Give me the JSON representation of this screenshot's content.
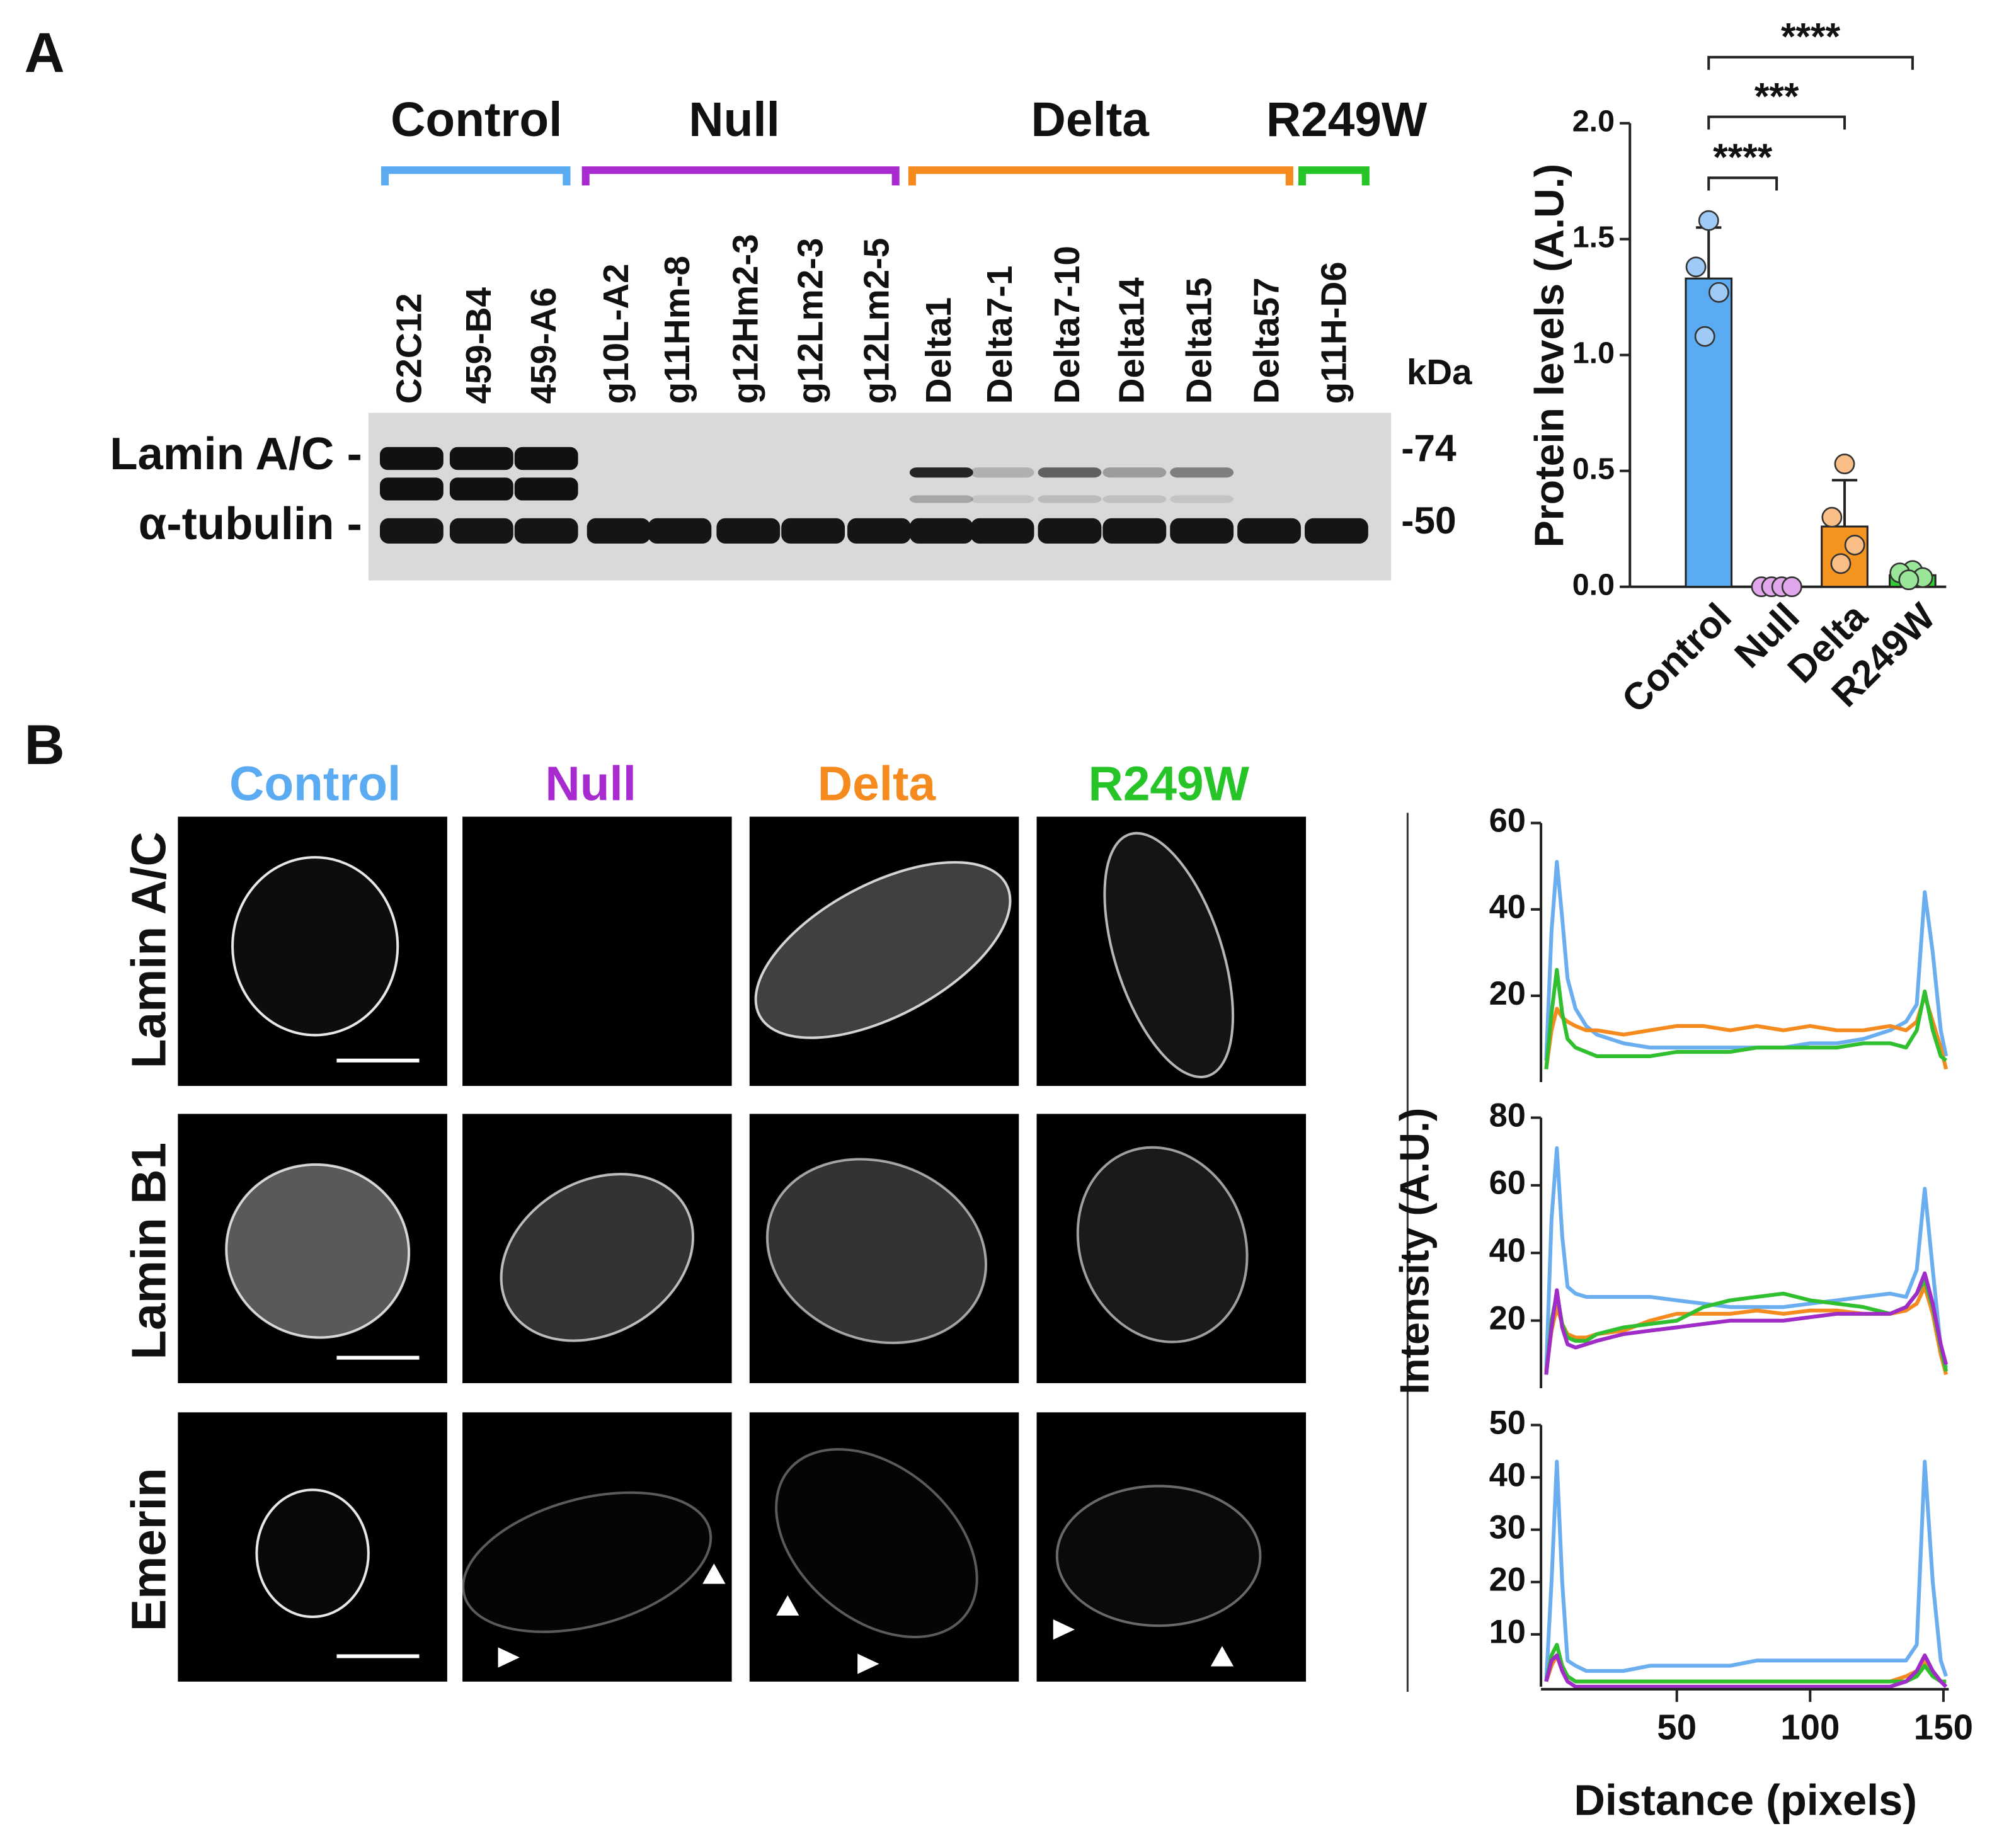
{
  "panel_a": {
    "label": "A",
    "groups": [
      {
        "name": "Control",
        "color": "#5aabf2"
      },
      {
        "name": "Null",
        "color": "#a82bd0"
      },
      {
        "name": "Delta",
        "color": "#f58a1f"
      },
      {
        "name": "R249W",
        "color": "#27c427"
      }
    ],
    "lanes": [
      "C2C12",
      "459-B4",
      "459-A6",
      "g10L-A2",
      "g11Hm-8",
      "g12Hm2-3",
      "g12Lm2-3",
      "g12Lm2-5",
      "Delta1",
      "Delta7-1",
      "Delta7-10",
      "Delta14",
      "Delta15",
      "Delta57",
      "g11H-D6"
    ],
    "unit": "kDa",
    "proteins": [
      "Lamin A/C -",
      "α-tubulin -"
    ],
    "markers": [
      "-74",
      "-50"
    ]
  },
  "panel_b": {
    "label": "B",
    "columns": [
      {
        "name": "Control",
        "color": "#5aabf2"
      },
      {
        "name": "Null",
        "color": "#a82bd0"
      },
      {
        "name": "Delta",
        "color": "#f58a1f"
      },
      {
        "name": "R249W",
        "color": "#27c427"
      }
    ],
    "rows": [
      "Lamin A/C",
      "Lamin B1",
      "Emerin"
    ]
  },
  "chart_data": [
    {
      "type": "bar",
      "ylabel": "Protein levels (A.U.)",
      "categories": [
        "Control",
        "Null",
        "Delta",
        "R249W"
      ],
      "values": [
        1.33,
        0.0,
        0.26,
        0.05
      ],
      "errors": [
        0.22,
        0.0,
        0.2,
        0.02
      ],
      "points": [
        [
          1.58,
          1.38,
          1.27,
          1.08
        ],
        [
          0,
          0,
          0,
          0
        ],
        [
          0.53,
          0.3,
          0.18,
          0.1
        ],
        [
          0.07,
          0.06,
          0.04,
          0.03
        ]
      ],
      "colors": [
        "#5aabf2",
        "#cc66dd",
        "#f5941f",
        "#33cc33"
      ],
      "point_colors": [
        "#9fcaf5",
        "#e2a6ec",
        "#f9bf86",
        "#99e699"
      ],
      "ylim": [
        0,
        2
      ],
      "yticks": [
        {
          "value": 0,
          "label": "0.0"
        },
        {
          "value": 0.5,
          "label": "0.5"
        },
        {
          "value": 1,
          "label": "1.0"
        },
        {
          "value": 1.5,
          "label": "1.5"
        },
        {
          "value": 2,
          "label": "2.0"
        }
      ],
      "significance": [
        {
          "label": "****",
          "between": [
            "Control",
            "Null"
          ]
        },
        {
          "label": "***",
          "between": [
            "Control",
            "Delta"
          ]
        },
        {
          "label": "****",
          "between": [
            "Control",
            "R249W"
          ]
        }
      ]
    },
    {
      "type": "line",
      "x": [
        1,
        3,
        5,
        7,
        9,
        12,
        16,
        20,
        30,
        40,
        50,
        60,
        70,
        80,
        90,
        100,
        110,
        120,
        130,
        136,
        140,
        143,
        146,
        149,
        151
      ],
      "xlim": [
        0,
        152
      ],
      "ylim": [
        0,
        60
      ],
      "yticks": [
        20,
        40,
        60
      ],
      "series": [
        {
          "color": "#6aaef0",
          "values": [
            5,
            35,
            51,
            38,
            24,
            17,
            13,
            11,
            9,
            8,
            8,
            8,
            8,
            8,
            8,
            9,
            9,
            10,
            12,
            14,
            18,
            44,
            30,
            12,
            6
          ]
        },
        {
          "color": "#f58b1e",
          "values": [
            3,
            12,
            17,
            15,
            14,
            13,
            12,
            12,
            11,
            12,
            13,
            13,
            12,
            13,
            12,
            13,
            12,
            12,
            13,
            12,
            14,
            20,
            14,
            8,
            3
          ]
        },
        {
          "color": "#2fbf2f",
          "values": [
            3,
            16,
            26,
            16,
            10,
            8,
            7,
            6,
            6,
            6,
            7,
            7,
            7,
            8,
            8,
            8,
            8,
            9,
            9,
            8,
            12,
            21,
            12,
            6,
            5
          ]
        }
      ]
    },
    {
      "type": "line",
      "ylabel": "Intensity (A.U.)",
      "x": [
        1,
        3,
        5,
        7,
        9,
        12,
        16,
        20,
        30,
        40,
        50,
        60,
        70,
        80,
        90,
        100,
        110,
        120,
        130,
        136,
        140,
        143,
        146,
        149,
        151
      ],
      "xlim": [
        0,
        152
      ],
      "ylim": [
        0,
        80
      ],
      "yticks": [
        20,
        40,
        60,
        80
      ],
      "series": [
        {
          "color": "#6aaef0",
          "values": [
            5,
            50,
            71,
            45,
            30,
            28,
            27,
            27,
            27,
            27,
            26,
            25,
            24,
            24,
            24,
            25,
            26,
            27,
            28,
            27,
            35,
            59,
            35,
            12,
            6
          ]
        },
        {
          "color": "#f58b1e",
          "values": [
            5,
            17,
            24,
            19,
            16,
            15,
            15,
            16,
            17,
            20,
            22,
            22,
            22,
            23,
            22,
            23,
            23,
            22,
            22,
            23,
            25,
            30,
            22,
            10,
            4
          ]
        },
        {
          "color": "#2fbf2f",
          "values": [
            4,
            20,
            28,
            19,
            15,
            14,
            14,
            16,
            18,
            19,
            20,
            24,
            26,
            27,
            28,
            26,
            25,
            24,
            22,
            24,
            28,
            32,
            24,
            12,
            5
          ]
        },
        {
          "color": "#a02cc8",
          "values": [
            4,
            18,
            29,
            18,
            13,
            12,
            13,
            14,
            16,
            17,
            18,
            19,
            20,
            20,
            20,
            21,
            22,
            22,
            22,
            24,
            28,
            34,
            25,
            13,
            7
          ]
        }
      ]
    },
    {
      "type": "line",
      "xlabel": "Distance (pixels)",
      "x": [
        1,
        3,
        5,
        7,
        9,
        12,
        16,
        20,
        30,
        40,
        50,
        60,
        70,
        80,
        90,
        100,
        110,
        120,
        130,
        136,
        140,
        143,
        146,
        149,
        151
      ],
      "xlim": [
        0,
        152
      ],
      "xticks": [
        50,
        100,
        150
      ],
      "ylim": [
        0,
        50
      ],
      "yticks": [
        10,
        20,
        30,
        40,
        50
      ],
      "series": [
        {
          "color": "#6aaef0",
          "values": [
            1,
            20,
            43,
            20,
            5,
            4,
            3,
            3,
            3,
            4,
            4,
            4,
            4,
            5,
            5,
            5,
            5,
            5,
            5,
            5,
            8,
            43,
            20,
            5,
            2
          ]
        },
        {
          "color": "#f58b1e",
          "values": [
            1,
            4,
            6,
            4,
            2,
            1,
            1,
            1,
            1,
            1,
            1,
            1,
            1,
            1,
            1,
            1,
            1,
            1,
            1,
            2,
            3,
            5,
            3,
            1,
            1
          ]
        },
        {
          "color": "#2fbf2f",
          "values": [
            1,
            6,
            8,
            4,
            2,
            1,
            1,
            1,
            1,
            1,
            1,
            1,
            1,
            1,
            1,
            1,
            1,
            1,
            1,
            1,
            2,
            4,
            2,
            1,
            1
          ]
        },
        {
          "color": "#a02cc8",
          "values": [
            1,
            5,
            6,
            3,
            1,
            0,
            0,
            0,
            0,
            0,
            0,
            0,
            0,
            0,
            0,
            0,
            0,
            0,
            0,
            1,
            3,
            6,
            3,
            1,
            0
          ]
        }
      ]
    }
  ]
}
